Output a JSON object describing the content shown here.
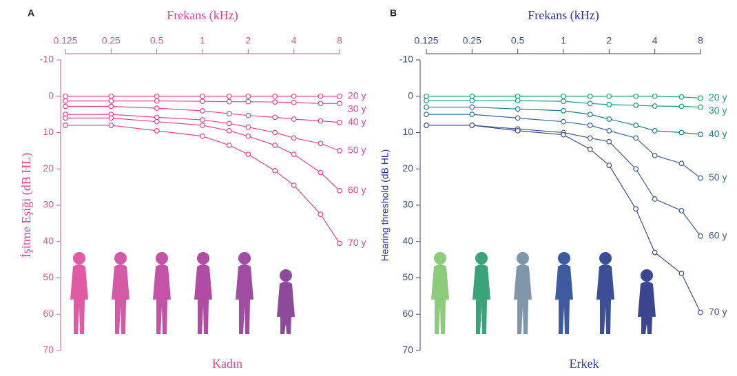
{
  "chart_data": [
    {
      "type": "line",
      "panel_label": "A",
      "xlabel": "Frekans (kHz)",
      "ylabel": "İşitme Eşiği (dB HL)",
      "caption": "Kadın",
      "xscale": "log",
      "yaxis_inverted": true,
      "color": "#e2428f",
      "x": [
        0.125,
        0.25,
        0.5,
        1,
        1.5,
        2,
        3,
        4,
        6,
        8
      ],
      "xlim": [
        0.125,
        8
      ],
      "xticks": [
        0.125,
        0.25,
        0.5,
        1,
        2,
        4,
        8
      ],
      "ylim": [
        -10,
        70
      ],
      "yticks": [
        -10,
        0,
        10,
        20,
        30,
        40,
        50,
        60,
        70
      ],
      "series": [
        {
          "name": "20 y",
          "color": "#e8428f",
          "values": [
            0,
            0,
            0,
            0,
            0,
            0,
            0,
            0,
            0,
            0
          ]
        },
        {
          "name": "30 y",
          "color": "#e8428f",
          "values": [
            1.3,
            1.3,
            1.3,
            1.4,
            1.5,
            1.5,
            1.6,
            1.7,
            2,
            2
          ]
        },
        {
          "name": "40 y",
          "color": "#e8428f",
          "values": [
            2.8,
            2.8,
            3.3,
            4,
            4.8,
            5.3,
            5.8,
            6.3,
            6.8,
            7.2
          ]
        },
        {
          "name": "50 y",
          "color": "#e8428f",
          "values": [
            5,
            5,
            5.8,
            6.5,
            7.5,
            8.5,
            10,
            11.5,
            13,
            15
          ]
        },
        {
          "name": "60 y",
          "color": "#e8428f",
          "values": [
            6,
            6,
            7,
            8,
            9.5,
            11,
            13.5,
            16,
            21,
            26
          ]
        },
        {
          "name": "70 y",
          "color": "#e8428f",
          "values": [
            8,
            8,
            9.5,
            11,
            13.5,
            16,
            20.5,
            24.5,
            32.5,
            40.5
          ]
        }
      ]
    },
    {
      "type": "line",
      "panel_label": "B",
      "xlabel": "Frekans (kHz)",
      "ylabel": "Hearing threshold (dB HL)",
      "caption": "Erkek",
      "xscale": "log",
      "yaxis_inverted": true,
      "color": "#3a4a86",
      "x": [
        0.125,
        0.25,
        0.5,
        1,
        1.5,
        2,
        3,
        4,
        6,
        8
      ],
      "xlim": [
        0.125,
        8
      ],
      "xticks": [
        0.125,
        0.25,
        0.5,
        1,
        2,
        4,
        8
      ],
      "ylim": [
        -10,
        70
      ],
      "yticks": [
        -10,
        0,
        10,
        20,
        30,
        40,
        50,
        60,
        70
      ],
      "series": [
        {
          "name": "20 y",
          "color": "#17a36c",
          "values": [
            0,
            0,
            0,
            0,
            0,
            0,
            0,
            0,
            0.2,
            0.5
          ]
        },
        {
          "name": "30 y",
          "color": "#1b9a7c",
          "values": [
            1.2,
            1.2,
            1.2,
            1.4,
            2,
            2.3,
            2.5,
            2.7,
            2.8,
            3
          ]
        },
        {
          "name": "40 y",
          "color": "#22788a",
          "values": [
            3,
            3,
            3.5,
            4,
            5,
            6.3,
            8,
            9.5,
            10,
            10.5
          ]
        },
        {
          "name": "50 y",
          "color": "#3a6590",
          "values": [
            5,
            5,
            6,
            7,
            8,
            9.5,
            11.5,
            16.3,
            18.5,
            22.5
          ]
        },
        {
          "name": "60 y",
          "color": "#3c5a8c",
          "values": [
            8,
            8,
            9,
            10,
            11.5,
            12.5,
            20,
            28.3,
            31.5,
            38.5
          ]
        },
        {
          "name": "70 y",
          "color": "#3a4a86",
          "values": [
            8,
            8,
            9.5,
            10.6,
            14.6,
            19,
            31,
            43,
            48.8,
            59.5
          ]
        }
      ]
    }
  ]
}
